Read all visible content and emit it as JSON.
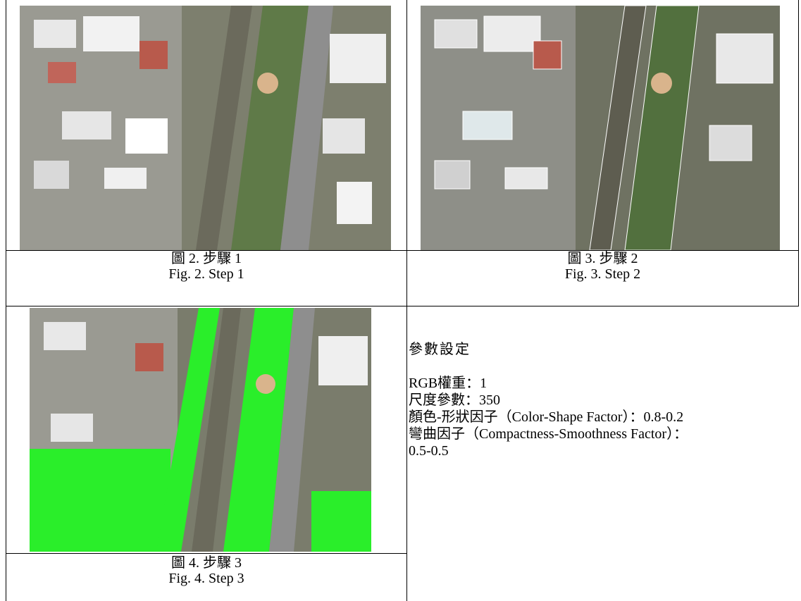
{
  "figures": [
    {
      "caption_zh": "圖 2. 步驟 1",
      "caption_en": "Fig. 2. Step 1"
    },
    {
      "caption_zh": "圖 3. 步驟 2",
      "caption_en": "Fig. 3. Step 2"
    },
    {
      "caption_zh": "圖 4. 步驟 3",
      "caption_en": "Fig. 4. Step 3"
    }
  ],
  "parameters": {
    "title": "參數設定",
    "lines": [
      "RGB權重：1",
      "尺度參數：350",
      "顏色-形狀因子（Color-Shape Factor）：0.8-0.2",
      "彎曲因子（Compactness-Smoothness Factor）：0.5-0.5"
    ]
  }
}
